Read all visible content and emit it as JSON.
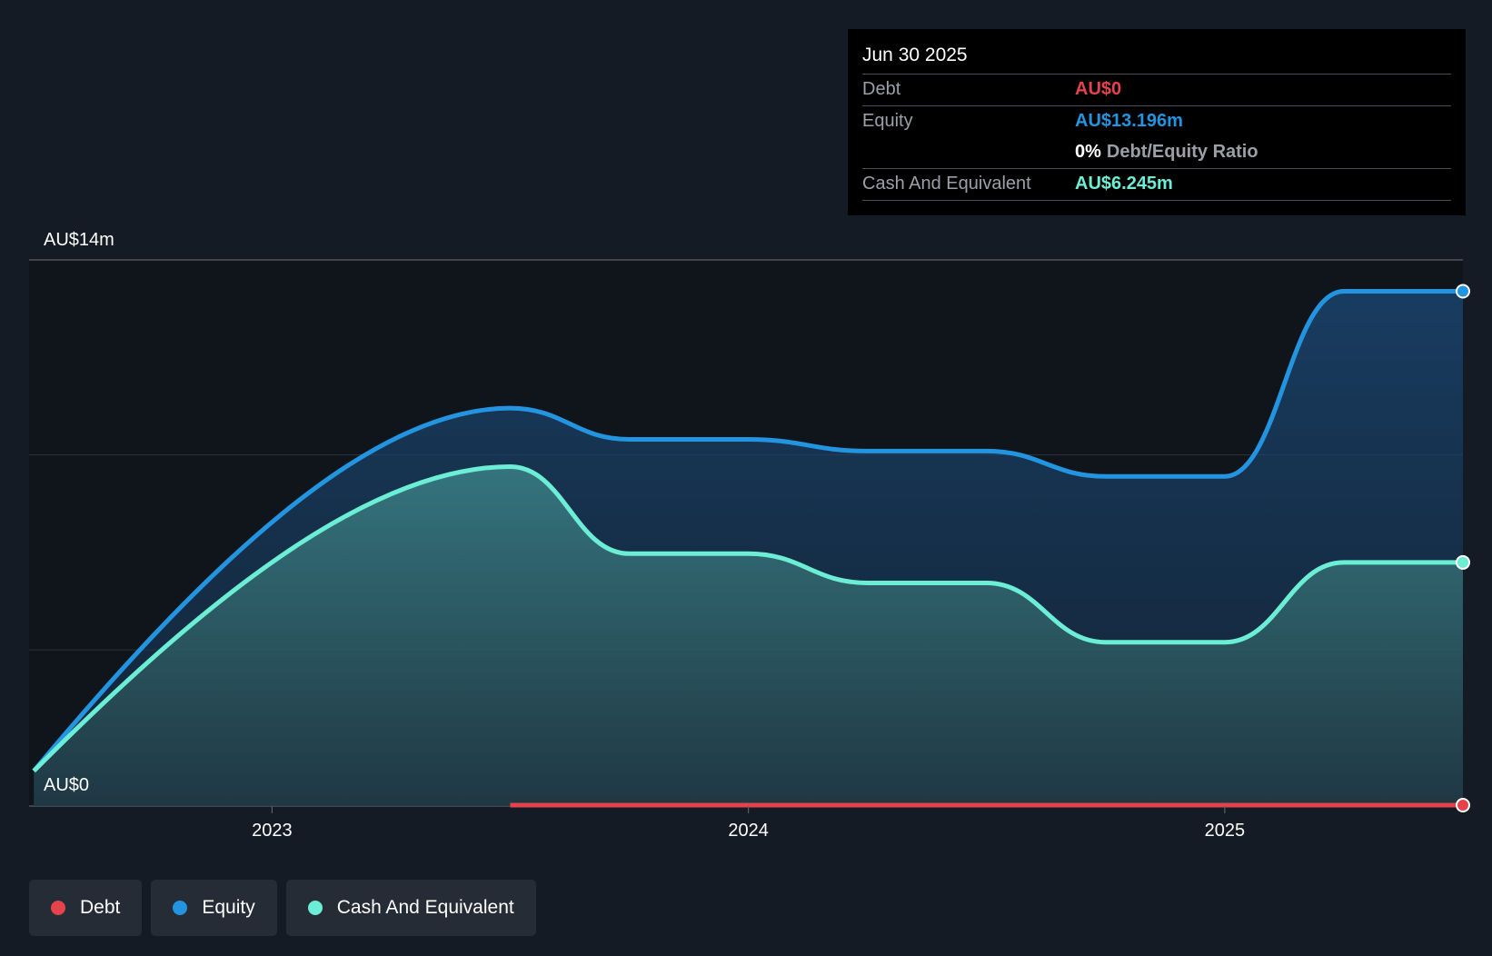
{
  "colors": {
    "debt": "#e5434b",
    "equity": "#2394df",
    "cash": "#6cedd5",
    "background": "#151b24",
    "plot_background": "#10141b"
  },
  "tooltip": {
    "date": "Jun 30 2025",
    "debt_label": "Debt",
    "debt_value": "AU$0",
    "equity_label": "Equity",
    "equity_value": "AU$13.196m",
    "ratio_value": "0%",
    "ratio_label": "Debt/Equity Ratio",
    "cash_label": "Cash And Equivalent",
    "cash_value": "AU$6.245m"
  },
  "legend": {
    "debt": "Debt",
    "equity": "Equity",
    "cash": "Cash And Equivalent"
  },
  "chart_data": {
    "type": "area",
    "title": "",
    "xlabel": "",
    "ylabel": "",
    "y_unit": "AU$m",
    "ylim": [
      0,
      14
    ],
    "y_tick_labels": [
      "AU$0",
      "AU$14m"
    ],
    "x_range": [
      2022.49,
      2025.5
    ],
    "x_ticks": [
      2023,
      2024,
      2025
    ],
    "x_tick_labels": [
      "2023",
      "2024",
      "2025"
    ],
    "grid": true,
    "legend_position": "bottom-left",
    "series": [
      {
        "name": "Equity",
        "color_key": "equity",
        "points": [
          [
            2022.5,
            0.9
          ],
          [
            2023.5,
            10.2
          ],
          [
            2023.75,
            9.4
          ],
          [
            2024.0,
            9.4
          ],
          [
            2024.25,
            9.1
          ],
          [
            2024.5,
            9.1
          ],
          [
            2024.75,
            8.45
          ],
          [
            2025.0,
            8.45
          ],
          [
            2025.25,
            13.196
          ],
          [
            2025.5,
            13.196
          ]
        ]
      },
      {
        "name": "Cash And Equivalent",
        "color_key": "cash",
        "points": [
          [
            2022.5,
            0.9
          ],
          [
            2023.5,
            8.7
          ],
          [
            2023.75,
            6.47
          ],
          [
            2024.0,
            6.47
          ],
          [
            2024.25,
            5.72
          ],
          [
            2024.5,
            5.72
          ],
          [
            2024.75,
            4.2
          ],
          [
            2025.0,
            4.2
          ],
          [
            2025.25,
            6.245
          ],
          [
            2025.5,
            6.245
          ]
        ]
      },
      {
        "name": "Debt",
        "color_key": "debt",
        "points": [
          [
            2023.5,
            0
          ],
          [
            2025.5,
            0
          ]
        ]
      }
    ]
  }
}
